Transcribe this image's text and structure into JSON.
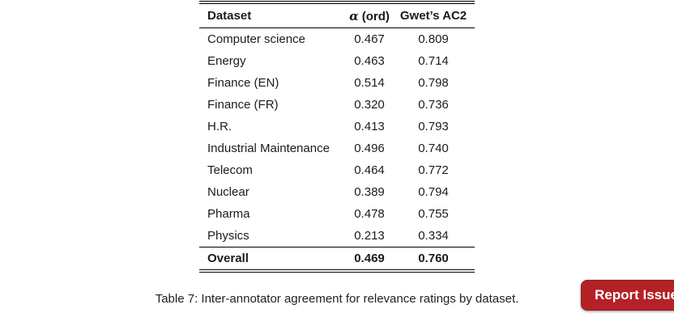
{
  "table": {
    "header": {
      "dataset": "Dataset",
      "alpha_symbol": "α",
      "alpha_rest": " (ord)",
      "ac2": "Gwet’s AC2"
    },
    "rows": [
      {
        "dataset": "Computer science",
        "alpha": "0.467",
        "ac2": "0.809"
      },
      {
        "dataset": "Energy",
        "alpha": "0.463",
        "ac2": "0.714"
      },
      {
        "dataset": "Finance (EN)",
        "alpha": "0.514",
        "ac2": "0.798"
      },
      {
        "dataset": "Finance (FR)",
        "alpha": "0.320",
        "ac2": "0.736"
      },
      {
        "dataset": "H.R.",
        "alpha": "0.413",
        "ac2": "0.793"
      },
      {
        "dataset": "Industrial Maintenance",
        "alpha": "0.496",
        "ac2": "0.740"
      },
      {
        "dataset": "Telecom",
        "alpha": "0.464",
        "ac2": "0.772"
      },
      {
        "dataset": "Nuclear",
        "alpha": "0.389",
        "ac2": "0.794"
      },
      {
        "dataset": "Pharma",
        "alpha": "0.478",
        "ac2": "0.755"
      },
      {
        "dataset": "Physics",
        "alpha": "0.213",
        "ac2": "0.334"
      }
    ],
    "overall": {
      "dataset": "Overall",
      "alpha": "0.469",
      "ac2": "0.760"
    }
  },
  "caption": "Table 7: Inter-annotator agreement for relevance ratings by dataset.",
  "report_button": {
    "label": "Report Issue"
  },
  "colors": {
    "button_red": "#b42127",
    "rule": "#000000",
    "text": "#1b1b1b"
  }
}
